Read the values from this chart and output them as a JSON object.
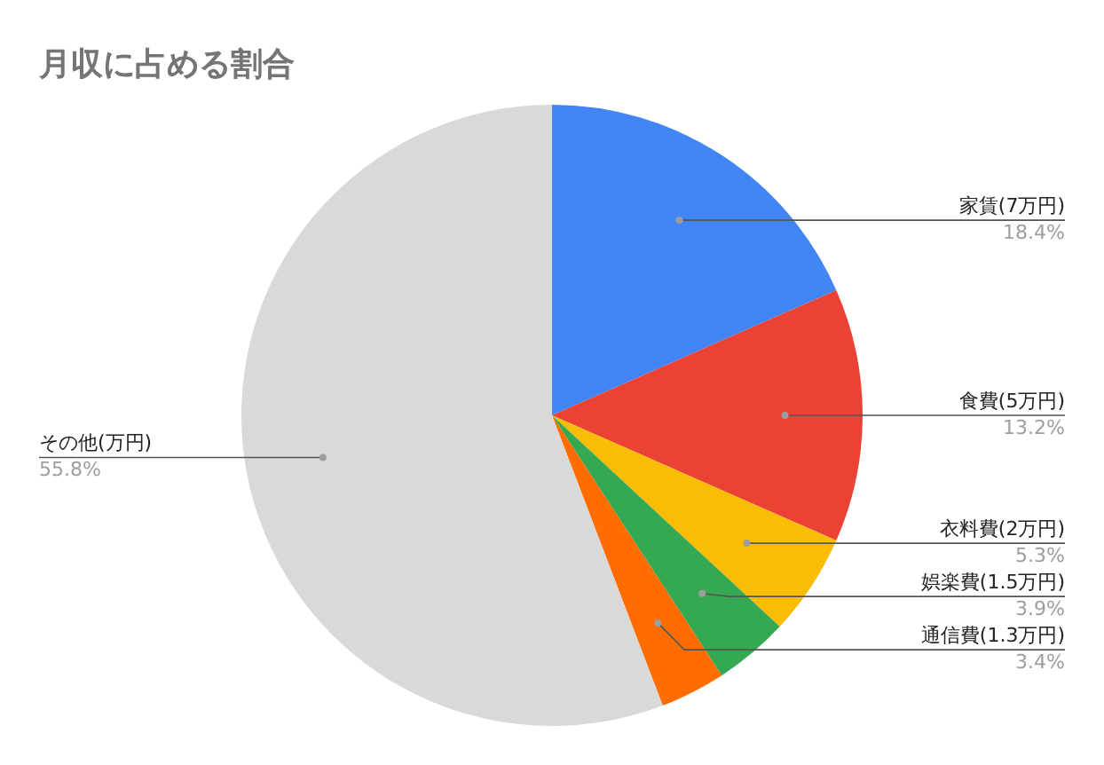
{
  "chart_data": {
    "type": "pie",
    "title": "月収に占める割合",
    "categories": [
      "家賃(7万円)",
      "食費(5万円)",
      "衣料費(2万円)",
      "娯楽費(1.5万円)",
      "通信費(1.3万円)",
      "その他(万円)"
    ],
    "values": [
      18.4,
      13.2,
      5.3,
      3.9,
      3.4,
      55.8
    ],
    "colors": [
      "#4285f4",
      "#ea4335",
      "#fbbc04",
      "#34a853",
      "#ff6d01",
      "#d9d9d9"
    ],
    "value_labels": [
      "18.4%",
      "13.2%",
      "5.3%",
      "3.9%",
      "3.4%",
      "55.8%"
    ]
  }
}
